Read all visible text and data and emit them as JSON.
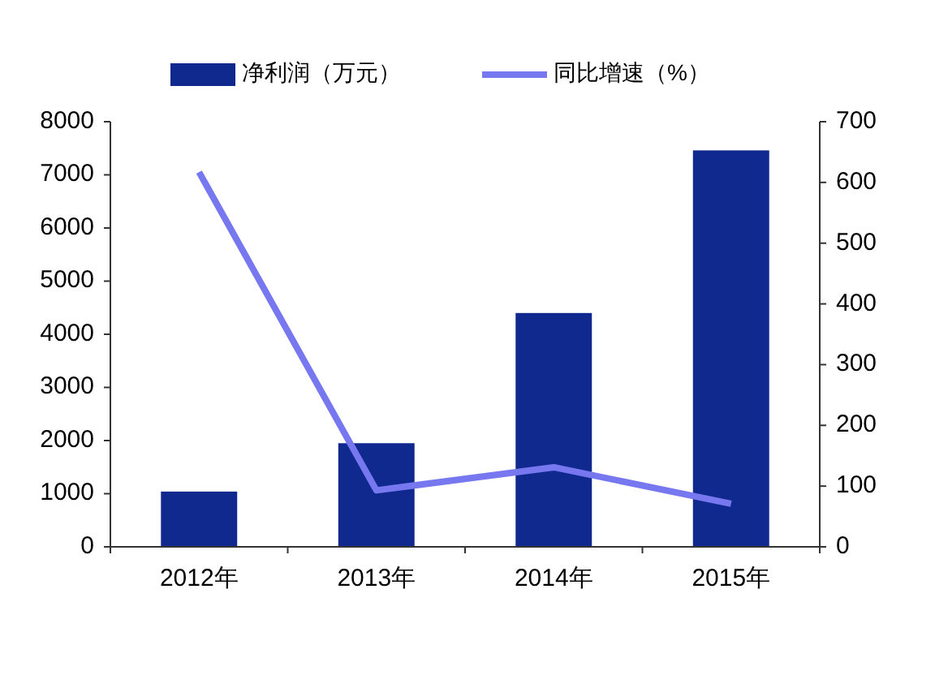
{
  "chart_data": {
    "type": "bar",
    "categories": [
      "2012年",
      "2013年",
      "2014年",
      "2015年"
    ],
    "series": [
      {
        "name": "净利润（万元）",
        "color": "#10298f",
        "values": [
          1040,
          1950,
          4400,
          7460
        ]
      },
      {
        "name": "同比增速（%）",
        "type": "line",
        "axis": "y2",
        "color": "#7777f0",
        "values": [
          617,
          93,
          131,
          71
        ]
      }
    ],
    "ylim": [
      0,
      8000
    ],
    "yticks": [
      0,
      1000,
      2000,
      3000,
      4000,
      5000,
      6000,
      7000,
      8000
    ],
    "y2lim": [
      0,
      700
    ],
    "y2ticks": [
      0,
      100,
      200,
      300,
      400,
      500,
      600,
      700
    ],
    "grid": false,
    "legend": "top",
    "marker": "none",
    "line_style": "solid"
  }
}
